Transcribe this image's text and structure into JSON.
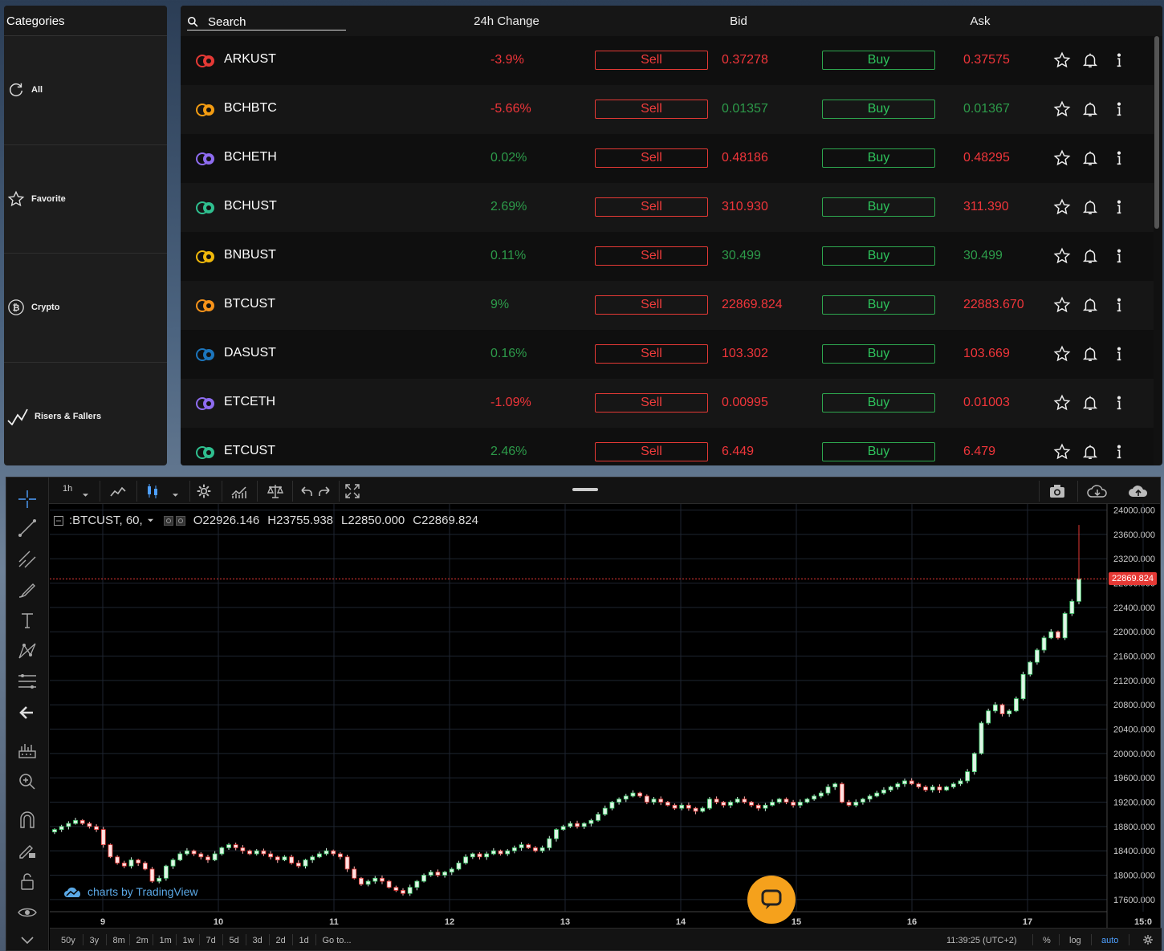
{
  "categories": {
    "title": "Categories",
    "items": [
      {
        "label": "All",
        "icon": "refresh-icon"
      },
      {
        "label": "Favorite",
        "icon": "star-icon"
      },
      {
        "label": "Crypto",
        "icon": "bitcoin-icon"
      },
      {
        "label": "Risers & Fallers",
        "icon": "trend-icon"
      }
    ]
  },
  "market": {
    "search_label": "Search",
    "headers": {
      "change": "24h Change",
      "bid": "Bid",
      "ask": "Ask"
    },
    "sell_label": "Sell",
    "buy_label": "Buy",
    "rows": [
      {
        "symbol": "ARKUST",
        "change": "-3.9%",
        "change_dir": "down",
        "bid": "0.37278",
        "ask": "0.37575",
        "price_dir": "down",
        "icon_color": "#e53935"
      },
      {
        "symbol": "BCHBTC",
        "change": "-5.66%",
        "change_dir": "down",
        "bid": "0.01357",
        "ask": "0.01367",
        "price_dir": "up",
        "icon_color": "#f39c12"
      },
      {
        "symbol": "BCHETH",
        "change": "0.02%",
        "change_dir": "up",
        "bid": "0.48186",
        "ask": "0.48295",
        "price_dir": "down",
        "icon_color": "#8e6cf0"
      },
      {
        "symbol": "BCHUST",
        "change": "2.69%",
        "change_dir": "up",
        "bid": "310.930",
        "ask": "311.390",
        "price_dir": "down",
        "icon_color": "#2fbf8f"
      },
      {
        "symbol": "BNBUST",
        "change": "0.11%",
        "change_dir": "up",
        "bid": "30.499",
        "ask": "30.499",
        "price_dir": "up",
        "icon_color": "#f0b90b"
      },
      {
        "symbol": "BTCUST",
        "change": "9%",
        "change_dir": "up",
        "bid": "22869.824",
        "ask": "22883.670",
        "price_dir": "down",
        "icon_color": "#f7931a"
      },
      {
        "symbol": "DASUST",
        "change": "0.16%",
        "change_dir": "up",
        "bid": "103.302",
        "ask": "103.669",
        "price_dir": "down",
        "icon_color": "#1c75bc"
      },
      {
        "symbol": "ETCETH",
        "change": "-1.09%",
        "change_dir": "down",
        "bid": "0.00995",
        "ask": "0.01003",
        "price_dir": "down",
        "icon_color": "#8e6cf0"
      },
      {
        "symbol": "ETCUST",
        "change": "2.46%",
        "change_dir": "up",
        "bid": "6.449",
        "ask": "6.479",
        "price_dir": "down",
        "icon_color": "#2fbf8f"
      }
    ]
  },
  "chart": {
    "interval": "1h",
    "legend": {
      "symbol": ":BTCUST, 60,",
      "open": "O22926.146",
      "high": "H23755.938",
      "low": "L22850.000",
      "close": "C22869.824"
    },
    "last_price_label": "22869.824",
    "watermark": "charts by TradingView",
    "time": "11:39:25 (UTC+2)",
    "ranges": [
      "50y",
      "3y",
      "8m",
      "2m",
      "1m",
      "1w",
      "7d",
      "5d",
      "3d",
      "2d",
      "1d",
      "Go to..."
    ],
    "bottom_right": {
      "percent": "%",
      "log": "log",
      "auto": "auto"
    },
    "colors": {
      "up": "#3ecb6a",
      "down": "#e53935",
      "grid": "#1e2530"
    }
  },
  "chart_data": {
    "type": "candlestick",
    "title": "",
    "x_ticks": [
      "9",
      "10",
      "11",
      "12",
      "13",
      "14",
      "15",
      "16",
      "17",
      "15:0"
    ],
    "y_ticks": [
      17600,
      18000,
      18400,
      18800,
      19200,
      19600,
      20000,
      20400,
      20800,
      21200,
      21600,
      22000,
      22400,
      22800,
      23200,
      23600,
      24000
    ],
    "ylim": [
      17400,
      24100
    ],
    "last_price": 22869.824,
    "close_series": [
      18750,
      18800,
      18850,
      18900,
      18850,
      18800,
      18750,
      18500,
      18300,
      18200,
      18150,
      18250,
      18200,
      18100,
      17900,
      17950,
      18150,
      18250,
      18350,
      18400,
      18350,
      18300,
      18250,
      18350,
      18450,
      18500,
      18450,
      18400,
      18350,
      18400,
      18350,
      18300,
      18250,
      18300,
      18200,
      18150,
      18250,
      18300,
      18350,
      18400,
      18350,
      18300,
      18100,
      17950,
      17850,
      17900,
      17950,
      17900,
      17800,
      17750,
      17700,
      17800,
      17900,
      18000,
      18050,
      18000,
      18050,
      18100,
      18200,
      18300,
      18350,
      18300,
      18350,
      18400,
      18350,
      18400,
      18450,
      18500,
      18450,
      18400,
      18450,
      18600,
      18750,
      18800,
      18850,
      18800,
      18850,
      18900,
      19000,
      19100,
      19200,
      19250,
      19300,
      19350,
      19300,
      19200,
      19250,
      19200,
      19150,
      19100,
      19150,
      19100,
      19050,
      19100,
      19250,
      19200,
      19150,
      19200,
      19250,
      19200,
      19150,
      19100,
      19150,
      19200,
      19250,
      19200,
      19150,
      19200,
      19250,
      19300,
      19350,
      19450,
      19500,
      19200,
      19150,
      19200,
      19250,
      19300,
      19350,
      19400,
      19450,
      19500,
      19550,
      19500,
      19450,
      19400,
      19450,
      19400,
      19450,
      19500,
      19550,
      19700,
      20000,
      20500,
      20700,
      20800,
      20650,
      20700,
      20900,
      21300,
      21500,
      21700,
      21900,
      22000,
      21900,
      22300,
      22500,
      22870
    ]
  }
}
